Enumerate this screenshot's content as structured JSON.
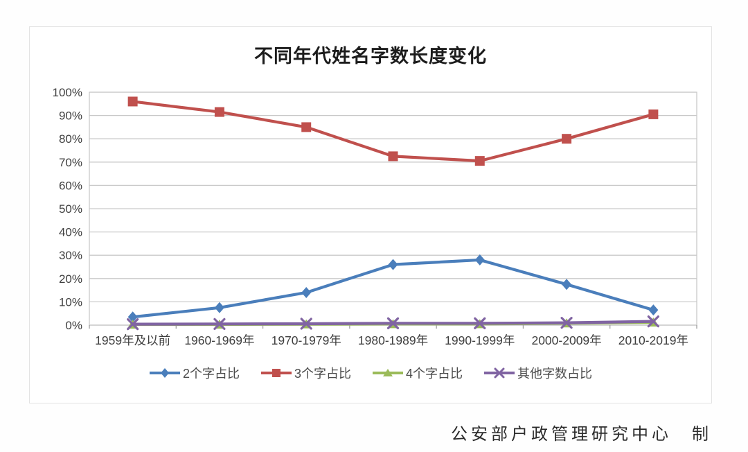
{
  "page": {
    "credit": "公安部户政管理研究中心　制"
  },
  "chart_data": {
    "type": "line",
    "title": "不同年代姓名字数长度变化",
    "categories": [
      "1959年及以前",
      "1960-1969年",
      "1970-1979年",
      "1980-1989年",
      "1990-1999年",
      "2000-2009年",
      "2010-2019年"
    ],
    "series": [
      {
        "name": "2个字占比",
        "color": "#4a7ebb",
        "marker": "diamond",
        "values": [
          3.5,
          7.5,
          14,
          26,
          28,
          17.5,
          6.5
        ]
      },
      {
        "name": "3个字占比",
        "color": "#c0504d",
        "marker": "square",
        "values": [
          96,
          91.5,
          85,
          72.5,
          70.5,
          80,
          90.5
        ]
      },
      {
        "name": "4个字占比",
        "color": "#9bbb59",
        "marker": "triangle",
        "values": [
          0.3,
          0.3,
          0.4,
          0.5,
          0.5,
          0.8,
          1.2
        ]
      },
      {
        "name": "其他字数占比",
        "color": "#8064a2",
        "marker": "x",
        "values": [
          0.4,
          0.5,
          0.6,
          0.8,
          0.8,
          1.0,
          1.6
        ]
      }
    ],
    "xlabel": "",
    "ylabel": "",
    "ylim": [
      0,
      100
    ],
    "ytick_step": 10,
    "ytick_labels": [
      "0%",
      "10%",
      "20%",
      "30%",
      "40%",
      "50%",
      "60%",
      "70%",
      "80%",
      "90%",
      "100%"
    ],
    "grid": true,
    "legend_position": "bottom",
    "colors": {
      "gridline": "#c9c9c9",
      "axis": "#9e9e9e",
      "tick_label": "#3f3f3f"
    }
  }
}
